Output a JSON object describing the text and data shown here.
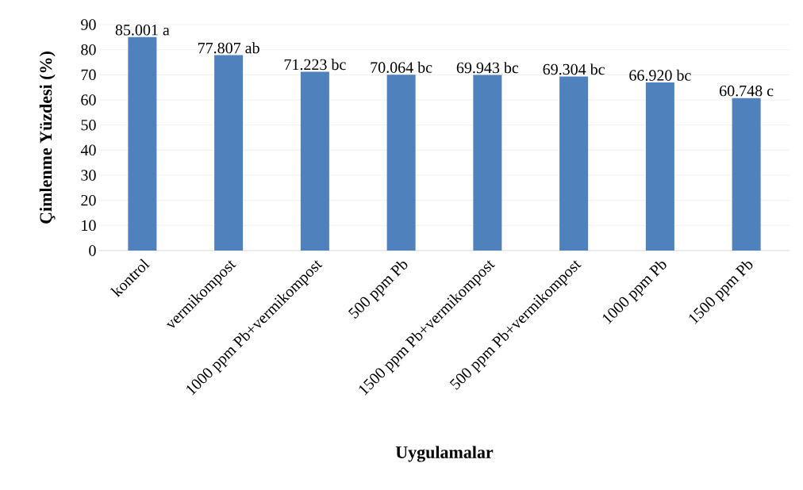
{
  "chart_data": {
    "type": "bar",
    "xlabel": "Uygulamalar",
    "ylabel": "Çimlenme Yüzdesi (%)",
    "categories": [
      "kontrol",
      "vermikompost",
      "1000 ppm Pb+vermikompost",
      "500 ppm Pb",
      "1500 ppm Pb+vermikompost",
      "500 ppm Pb+vermikompost",
      "1000 ppm Pb",
      "1500 ppm Pb"
    ],
    "values": [
      85.001,
      77.807,
      71.223,
      70.064,
      69.943,
      69.304,
      66.92,
      60.748
    ],
    "value_labels": [
      "85.001 a",
      "77.807 ab",
      "71.223 bc",
      "70.064 bc",
      "69.943 bc",
      "69.304 bc",
      "66.920 bc",
      "60.748 c"
    ],
    "color": "#4f81bd",
    "ylim": [
      0,
      90
    ],
    "yticks": [
      0,
      10,
      20,
      30,
      40,
      50,
      60,
      70,
      80,
      90
    ],
    "grid": "y"
  }
}
